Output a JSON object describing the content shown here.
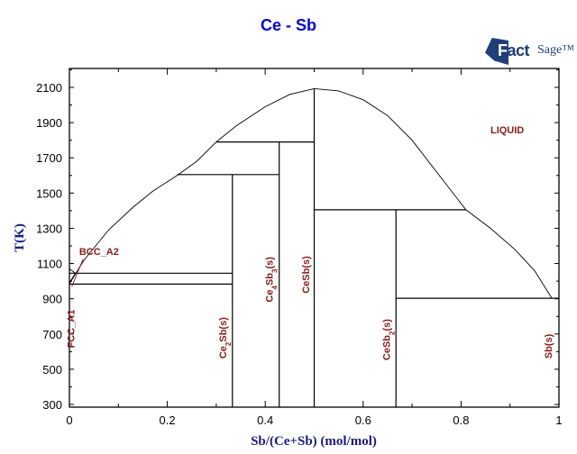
{
  "chart_data": {
    "type": "line",
    "title": "Ce - Sb",
    "subtitle": "",
    "logo": "FactSage",
    "xlabel": "Sb/(Ce+Sb) (mol/mol)",
    "ylabel": "T(K)",
    "xlim": [
      0,
      1
    ],
    "ylim": [
      280,
      2200
    ],
    "x_ticks": [
      "0",
      "0.2",
      "0.4",
      "0.6",
      "0.8",
      "1"
    ],
    "y_ticks": [
      "300",
      "500",
      "700",
      "900",
      "1100",
      "1300",
      "1500",
      "1700",
      "1900",
      "2100"
    ],
    "grid": false,
    "phase_labels": [
      {
        "text": "LIQUID",
        "x": 0.86,
        "y": 1840
      },
      {
        "text": "BCC_A2",
        "x": 0.02,
        "y": 1150
      },
      {
        "text": "FCC_A1",
        "x": 0.01,
        "y": 620,
        "rotated": true
      },
      {
        "text": "Ce2Sb(s)",
        "x": 0.32,
        "y": 560,
        "rotated": true
      },
      {
        "text": "Ce4Sb3(s)",
        "x": 0.415,
        "y": 880,
        "rotated": true
      },
      {
        "text": "CeSb(s)",
        "x": 0.49,
        "y": 930,
        "rotated": true
      },
      {
        "text": "CeSb2(s)",
        "x": 0.655,
        "y": 550,
        "rotated": true
      },
      {
        "text": "Sb(s)",
        "x": 0.985,
        "y": 560,
        "rotated": true
      }
    ],
    "series": [
      {
        "name": "liquidus-left",
        "points": [
          [
            0.0,
            985
          ],
          [
            0.03,
            1120
          ],
          [
            0.08,
            1290
          ],
          [
            0.13,
            1420
          ],
          [
            0.17,
            1510
          ],
          [
            0.22,
            1600
          ],
          [
            0.26,
            1680
          ],
          [
            0.3,
            1790
          ],
          [
            0.34,
            1880
          ],
          [
            0.4,
            1990
          ],
          [
            0.45,
            2060
          ],
          [
            0.5,
            2093
          ]
        ]
      },
      {
        "name": "liquidus-right",
        "points": [
          [
            0.5,
            2093
          ],
          [
            0.55,
            2080
          ],
          [
            0.6,
            2030
          ],
          [
            0.65,
            1940
          ],
          [
            0.7,
            1800
          ],
          [
            0.75,
            1620
          ],
          [
            0.81,
            1405
          ],
          [
            0.86,
            1300
          ],
          [
            0.91,
            1180
          ],
          [
            0.95,
            1060
          ],
          [
            0.985,
            905
          ]
        ]
      },
      {
        "name": "compound-Ce2Sb",
        "points": [
          [
            0.333,
            280
          ],
          [
            0.333,
            1605
          ]
        ]
      },
      {
        "name": "compound-Ce4Sb3",
        "points": [
          [
            0.4286,
            280
          ],
          [
            0.4286,
            1790
          ]
        ]
      },
      {
        "name": "compound-CeSb",
        "points": [
          [
            0.5,
            280
          ],
          [
            0.5,
            2093
          ]
        ]
      },
      {
        "name": "compound-CeSb2",
        "points": [
          [
            0.667,
            280
          ],
          [
            0.667,
            1405
          ]
        ]
      },
      {
        "name": "peritectic-Ce4Sb3",
        "points": [
          [
            0.3,
            1790
          ],
          [
            0.5,
            1790
          ]
        ]
      },
      {
        "name": "peritectic-Ce2Sb",
        "points": [
          [
            0.22,
            1605
          ],
          [
            0.4286,
            1605
          ]
        ]
      },
      {
        "name": "peritectic-CeSb2",
        "points": [
          [
            0.5,
            1405
          ],
          [
            0.81,
            1405
          ]
        ]
      },
      {
        "name": "eutectic-Sb",
        "points": [
          [
            0.667,
            903
          ],
          [
            1.0,
            903
          ]
        ]
      },
      {
        "name": "bcc-fcc-line-1",
        "points": [
          [
            0.0,
            1045
          ],
          [
            0.333,
            1045
          ]
        ]
      },
      {
        "name": "eutectic-Ce",
        "points": [
          [
            0.0,
            983
          ],
          [
            0.333,
            983
          ]
        ]
      },
      {
        "name": "bcc-solvus",
        "points": [
          [
            0.0,
            1070
          ],
          [
            0.012,
            1045
          ],
          [
            0.0,
            990
          ]
        ]
      }
    ]
  }
}
